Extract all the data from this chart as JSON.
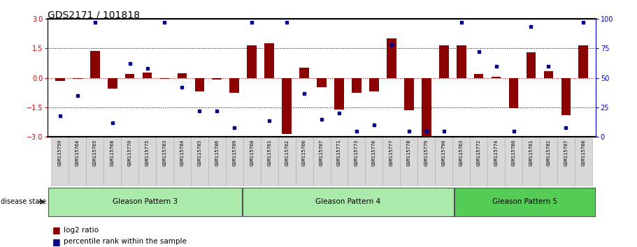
{
  "title": "GDS2171 / 101818",
  "samples": [
    "GSM115759",
    "GSM115764",
    "GSM115765",
    "GSM115768",
    "GSM115770",
    "GSM115775",
    "GSM115783",
    "GSM115784",
    "GSM115785",
    "GSM115786",
    "GSM115789",
    "GSM115760",
    "GSM115761",
    "GSM115762",
    "GSM115766",
    "GSM115767",
    "GSM115771",
    "GSM115773",
    "GSM115776",
    "GSM115777",
    "GSM115778",
    "GSM115779",
    "GSM115790",
    "GSM115763",
    "GSM115772",
    "GSM115774",
    "GSM115780",
    "GSM115781",
    "GSM115782",
    "GSM115787",
    "GSM115788"
  ],
  "log2_ratio": [
    -0.15,
    -0.05,
    1.35,
    -0.55,
    0.18,
    0.25,
    -0.05,
    0.22,
    -0.7,
    -0.08,
    -0.75,
    1.65,
    1.75,
    -2.85,
    0.52,
    -0.48,
    -1.6,
    -0.75,
    -0.7,
    2.0,
    -1.65,
    -3.0,
    1.65,
    1.65,
    0.18,
    0.05,
    -1.55,
    1.3,
    0.35,
    -1.9,
    1.65
  ],
  "percentile_rank": [
    18,
    35,
    97,
    12,
    62,
    58,
    97,
    42,
    22,
    22,
    8,
    97,
    14,
    97,
    37,
    15,
    20,
    5,
    10,
    78,
    5,
    5,
    5,
    97,
    72,
    60,
    5,
    93,
    60,
    8,
    97
  ],
  "group_data": [
    {
      "label": "Gleason Pattern 3",
      "start": 0,
      "end": 11,
      "color": "#AAEAAA"
    },
    {
      "label": "Gleason Pattern 4",
      "start": 11,
      "end": 23,
      "color": "#AAEAAA"
    },
    {
      "label": "Gleason Pattern 5",
      "start": 23,
      "end": 31,
      "color": "#55CC55"
    }
  ],
  "bar_color": "#8B0000",
  "dot_color": "#00008B",
  "left_axis_color": "#CC0000",
  "right_axis_color": "#0000CC",
  "legend_bar_label": "log2 ratio",
  "legend_dot_label": "percentile rank within the sample",
  "disease_state_label": "disease state"
}
